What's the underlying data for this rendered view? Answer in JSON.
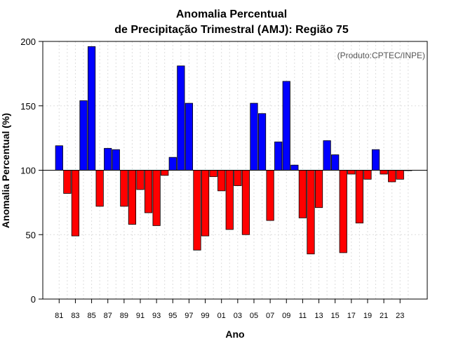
{
  "chart_data": {
    "type": "bar",
    "title_line1": "Anomalia Percentual",
    "title_line2": "de Precipitação Trimestral (AMJ): Região 75",
    "xlabel": "Ano",
    "ylabel": "Anomalia Percentual (%)",
    "credit": "(Produto:CPTEC/INPE)",
    "ylim": [
      0,
      200
    ],
    "yticks": [
      "0",
      "50",
      "100",
      "150",
      "200"
    ],
    "baseline": 100,
    "colors": {
      "above": "#0000ff",
      "below": "#ff0000"
    },
    "years": [
      1981,
      1982,
      1983,
      1984,
      1985,
      1986,
      1987,
      1988,
      1989,
      1990,
      1991,
      1992,
      1993,
      1994,
      1995,
      1996,
      1997,
      1998,
      1999,
      2000,
      2001,
      2002,
      2003,
      2004,
      2005,
      2006,
      2007,
      2008,
      2009,
      2010,
      2011,
      2012,
      2013,
      2014,
      2015,
      2016,
      2017,
      2018,
      2019,
      2020,
      2021,
      2022,
      2023,
      2024
    ],
    "values": [
      119,
      82,
      49,
      154,
      196,
      72,
      117,
      116,
      72,
      58,
      85,
      67,
      57,
      96,
      110,
      181,
      152,
      38,
      49,
      95,
      84,
      54,
      88,
      50,
      152,
      144,
      61,
      122,
      169,
      104,
      63,
      35,
      71,
      123,
      112,
      36,
      97,
      59,
      93,
      116,
      97,
      91,
      93,
      100
    ],
    "xticks": [
      {
        "year": 1981,
        "label": "81"
      },
      {
        "year": 1983,
        "label": "83"
      },
      {
        "year": 1985,
        "label": "85"
      },
      {
        "year": 1987,
        "label": "87"
      },
      {
        "year": 1989,
        "label": "89"
      },
      {
        "year": 1991,
        "label": "91"
      },
      {
        "year": 1993,
        "label": "93"
      },
      {
        "year": 1995,
        "label": "95"
      },
      {
        "year": 1997,
        "label": "97"
      },
      {
        "year": 1999,
        "label": "99"
      },
      {
        "year": 2001,
        "label": "01"
      },
      {
        "year": 2003,
        "label": "03"
      },
      {
        "year": 2005,
        "label": "05"
      },
      {
        "year": 2007,
        "label": "07"
      },
      {
        "year": 2009,
        "label": "09"
      },
      {
        "year": 2011,
        "label": "11"
      },
      {
        "year": 2013,
        "label": "13"
      },
      {
        "year": 2015,
        "label": "15"
      },
      {
        "year": 2017,
        "label": "17"
      },
      {
        "year": 2019,
        "label": "19"
      },
      {
        "year": 2021,
        "label": "21"
      },
      {
        "year": 2023,
        "label": "23"
      }
    ]
  }
}
